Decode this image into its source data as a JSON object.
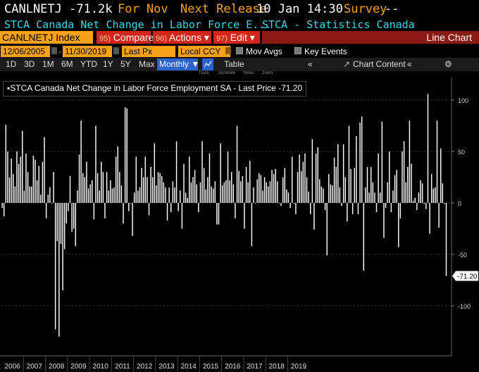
{
  "header": {
    "ticker_value": "CANLNETJ -71.2k",
    "for_label": "For Nov",
    "next_release_label": "Next Release",
    "next_release_value": "10 Jan 14:30",
    "survey_label": "Survey",
    "survey_value": "--",
    "description": "STCA Canada Net Change in Labor Force E...",
    "source": "STCA - Statistics Canada"
  },
  "toolbar": {
    "index_label": "CANLNETJ Index",
    "compare": {
      "num": "95)",
      "label": "Compare"
    },
    "actions": {
      "num": "96)",
      "label": "Actions ▾"
    },
    "edit": {
      "num": "97)",
      "label": "Edit ▾"
    },
    "chart_type": "Line Chart"
  },
  "settings": {
    "start_date": "12/06/2005",
    "end_date": "11/30/2019",
    "field": "Last Px",
    "currency": "Local CCY",
    "mov_avgs": "Mov Avgs",
    "key_events": "Key Events"
  },
  "periods": {
    "items": [
      "1D",
      "3D",
      "1M",
      "6M",
      "YTD",
      "1Y",
      "5Y",
      "Max"
    ],
    "frequency": "Monthly ▼",
    "table": "Table",
    "chart_content": "Chart Content"
  },
  "chart_tools": [
    "Track",
    "Annotate",
    "News",
    "Zoom"
  ],
  "colors": {
    "accent": "#f7a11a",
    "header_text": "#3ad6e4",
    "button_red": "#d3261a",
    "selected_blue": "#2c62c9",
    "bars": "#ffffff"
  },
  "chart_data": {
    "type": "bar",
    "title": "STCA Canada Net Change in Labor Force Employment SA - Last Price -71.20",
    "last_value_label": "-71.20",
    "ylim": [
      -140,
      125
    ],
    "yticks": [
      100,
      50,
      0,
      -50,
      -100
    ],
    "ytick_labels": [
      "100",
      "50",
      "0",
      "-50",
      "-100"
    ],
    "x_labels": [
      "2006",
      "2007",
      "2008",
      "2009",
      "2010",
      "2011",
      "2012",
      "2013",
      "2014",
      "2015",
      "2016",
      "2017",
      "2018",
      "2019"
    ],
    "start": "2006-01",
    "series": [
      {
        "values": [
          -5,
          -13,
          76,
          50,
          25,
          43,
          28,
          16,
          50,
          38,
          45,
          70,
          12,
          48,
          30,
          16,
          16,
          46,
          42,
          22,
          36,
          8,
          40,
          64,
          -15,
          8,
          15,
          0,
          30,
          -123,
          -37,
          -130,
          -40,
          -85,
          -45,
          -20,
          -8,
          26,
          -28,
          -25,
          -42,
          12,
          47,
          80,
          29,
          25,
          40,
          14,
          18,
          22,
          -16,
          75,
          29,
          12,
          40,
          30,
          -15,
          30,
          12,
          22,
          14,
          15,
          45,
          55,
          30,
          17,
          -20,
          93,
          92,
          -8,
          0,
          -32,
          10,
          45,
          12,
          15,
          34,
          25,
          45,
          25,
          -12,
          35,
          25,
          58,
          17,
          30,
          29,
          26,
          20,
          15,
          -17,
          15,
          -9,
          21,
          15,
          60,
          -8,
          12,
          -25,
          38,
          10,
          5,
          45,
          20,
          25,
          32,
          18,
          -9,
          20,
          60,
          34,
          13,
          25,
          48,
          16,
          14,
          21,
          -21,
          -21,
          58,
          17,
          20,
          22,
          50,
          22,
          30,
          18,
          -15,
          75,
          31,
          21,
          26,
          -25,
          35,
          20,
          41,
          -42,
          15,
          0,
          23,
          29,
          27,
          12,
          25,
          20,
          16,
          21,
          32,
          28,
          33,
          21,
          0,
          -3,
          25,
          34,
          13,
          10,
          -5,
          45,
          0,
          -11,
          30,
          47,
          31,
          40,
          48,
          25,
          11,
          -11,
          62,
          -26,
          48,
          54,
          23,
          16,
          14,
          -7,
          -51,
          28,
          18,
          17,
          44,
          35,
          57,
          15,
          -3,
          57,
          25,
          -18,
          75,
          33,
          -11,
          34,
          65,
          -11,
          78,
          84,
          -66,
          15,
          35,
          10,
          35,
          20,
          10,
          -9,
          48,
          10,
          79,
          -34,
          -5,
          20,
          50,
          -9,
          12,
          27,
          32,
          -43,
          -15,
          50,
          60,
          20,
          35,
          80,
          38,
          2,
          5,
          -7,
          10,
          22,
          19,
          -1,
          -6,
          106,
          -30,
          28,
          14,
          15,
          80,
          -24,
          53,
          19,
          -1,
          -71
        ]
      }
    ]
  }
}
